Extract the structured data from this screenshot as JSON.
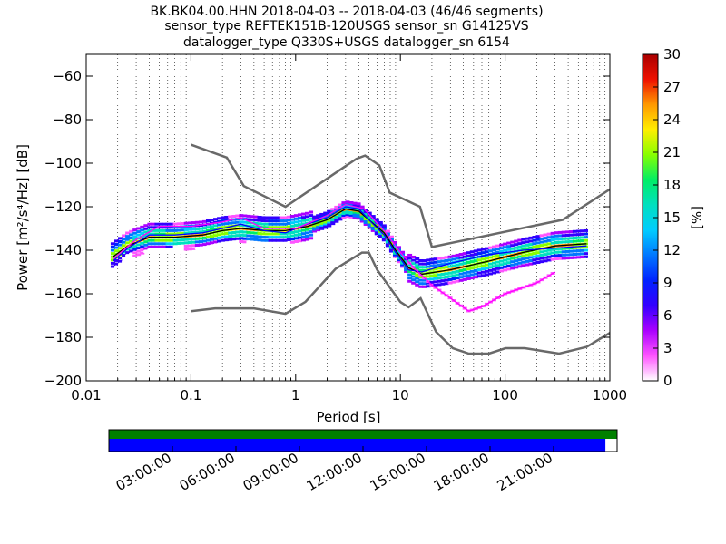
{
  "title_lines": [
    "BK.BK04.00.HHN   2018-04-03 -- 2018-04-03  (46/46 segments)",
    "sensor_type REFTEK151B-120USGS sensor_sn G14125VS",
    "datalogger_type Q330S+USGS datalogger_sn 6154"
  ],
  "chart_data": {
    "type": "heatmap",
    "xlabel": "Period [s]",
    "ylabel": "Power [m²/s⁴/Hz] [dB]",
    "x_scale": "log",
    "xlim": [
      0.01,
      1000
    ],
    "ylim": [
      -200,
      -50
    ],
    "x_ticks": [
      0.01,
      0.1,
      1,
      10,
      100,
      1000
    ],
    "x_tick_labels": [
      "0.01",
      "0.1",
      "1",
      "10",
      "100",
      "1000"
    ],
    "y_ticks": [
      -200,
      -180,
      -160,
      -140,
      -120,
      -100,
      -80,
      -60
    ],
    "y_tick_labels": [
      "−200",
      "−180",
      "−160",
      "−140",
      "−120",
      "−100",
      "−80",
      "−60"
    ],
    "grid": "dotted vertical lines at minor log ticks",
    "colorbar": {
      "label": "[%]",
      "range": [
        0,
        30
      ],
      "ticks": [
        0,
        3,
        6,
        9,
        12,
        15,
        18,
        21,
        24,
        27,
        30
      ],
      "colors": [
        "#ffffff",
        "#ff55ff",
        "#aa00ff",
        "#3300ff",
        "#0022ff",
        "#0077ff",
        "#00ccff",
        "#00e0c0",
        "#00ee66",
        "#88ff00",
        "#ffee00",
        "#ff9900",
        "#ee1100",
        "#aa0000"
      ]
    },
    "noise_models": {
      "color": "#696969",
      "high_noise_model": [
        [
          0.1,
          -91.5
        ],
        [
          0.22,
          -97.4
        ],
        [
          0.32,
          -110.5
        ],
        [
          0.8,
          -120
        ],
        [
          3.8,
          -98
        ],
        [
          4.6,
          -96.5
        ],
        [
          6.3,
          -101
        ],
        [
          7.9,
          -113.5
        ],
        [
          15.4,
          -120
        ],
        [
          20,
          -138.5
        ],
        [
          354.8,
          -126
        ],
        [
          1000,
          -112
        ]
      ],
      "low_noise_model": [
        [
          0.1,
          -168
        ],
        [
          0.17,
          -166.7
        ],
        [
          0.4,
          -166.7
        ],
        [
          0.8,
          -169.2
        ],
        [
          1.24,
          -163.7
        ],
        [
          2.4,
          -148.6
        ],
        [
          4.3,
          -141.1
        ],
        [
          5,
          -141.1
        ],
        [
          6,
          -149
        ],
        [
          10,
          -163.8
        ],
        [
          12,
          -166.2
        ],
        [
          15.6,
          -162.1
        ],
        [
          21.9,
          -177.5
        ],
        [
          31.6,
          -185
        ],
        [
          45,
          -187.5
        ],
        [
          70,
          -187.5
        ],
        [
          101,
          -185
        ],
        [
          154,
          -185
        ],
        [
          328,
          -187.5
        ],
        [
          600,
          -184.4
        ],
        [
          1000,
          -178
        ]
      ]
    },
    "psd_series": [
      {
        "role": "mean",
        "color": "#000000",
        "points": [
          [
            0.018,
            -143
          ],
          [
            0.025,
            -138
          ],
          [
            0.04,
            -134
          ],
          [
            0.07,
            -134
          ],
          [
            0.13,
            -133
          ],
          [
            0.2,
            -131
          ],
          [
            0.3,
            -130
          ],
          [
            0.5,
            -131
          ],
          [
            0.8,
            -131
          ],
          [
            1.3,
            -129
          ],
          [
            2,
            -126
          ],
          [
            3,
            -121
          ],
          [
            4,
            -122
          ],
          [
            5,
            -126
          ],
          [
            7,
            -132
          ],
          [
            9,
            -140
          ],
          [
            12,
            -148
          ],
          [
            16,
            -151
          ],
          [
            30,
            -149
          ],
          [
            70,
            -145
          ],
          [
            150,
            -141
          ],
          [
            300,
            -138
          ],
          [
            600,
            -137
          ]
        ]
      },
      {
        "role": "mode",
        "color": "#0000ff",
        "points": [
          [
            0.018,
            -145
          ],
          [
            0.025,
            -139
          ],
          [
            0.04,
            -133
          ],
          [
            0.07,
            -133
          ],
          [
            0.13,
            -132
          ],
          [
            0.2,
            -130
          ],
          [
            0.3,
            -128
          ],
          [
            0.5,
            -131
          ],
          [
            0.8,
            -132
          ],
          [
            1.3,
            -128
          ],
          [
            2,
            -125
          ],
          [
            3,
            -120
          ],
          [
            4,
            -121
          ],
          [
            5,
            -126
          ],
          [
            7,
            -133
          ],
          [
            9,
            -141
          ],
          [
            12,
            -149
          ],
          [
            16,
            -150
          ],
          [
            30,
            -146
          ],
          [
            70,
            -142
          ],
          [
            150,
            -140
          ],
          [
            300,
            -139
          ],
          [
            600,
            -138
          ]
        ]
      },
      {
        "role": "percentile-low",
        "color": "#ff00ff",
        "points": [
          [
            0.018,
            -144
          ],
          [
            0.03,
            -135
          ],
          [
            0.05,
            -129
          ],
          [
            0.1,
            -129
          ],
          [
            0.2,
            -127
          ],
          [
            0.3,
            -125
          ],
          [
            0.5,
            -130
          ],
          [
            1,
            -130
          ],
          [
            2,
            -124
          ],
          [
            3,
            -119
          ],
          [
            4.5,
            -121
          ],
          [
            7,
            -131
          ],
          [
            10,
            -141
          ],
          [
            14,
            -149
          ],
          [
            20,
            -156
          ],
          [
            30,
            -162
          ],
          [
            45,
            -168
          ],
          [
            60,
            -166
          ],
          [
            100,
            -160
          ],
          [
            200,
            -155
          ],
          [
            300,
            -150
          ]
        ]
      }
    ],
    "timeline": {
      "tick_labels": [
        "03:00:00",
        "06:00:00",
        "09:00:00",
        "12:00:00",
        "15:00:00",
        "18:00:00",
        "21:00:00"
      ],
      "data_available_color": "#008000",
      "segments_color": "#0000ff",
      "segments_fraction": 0.977
    }
  }
}
